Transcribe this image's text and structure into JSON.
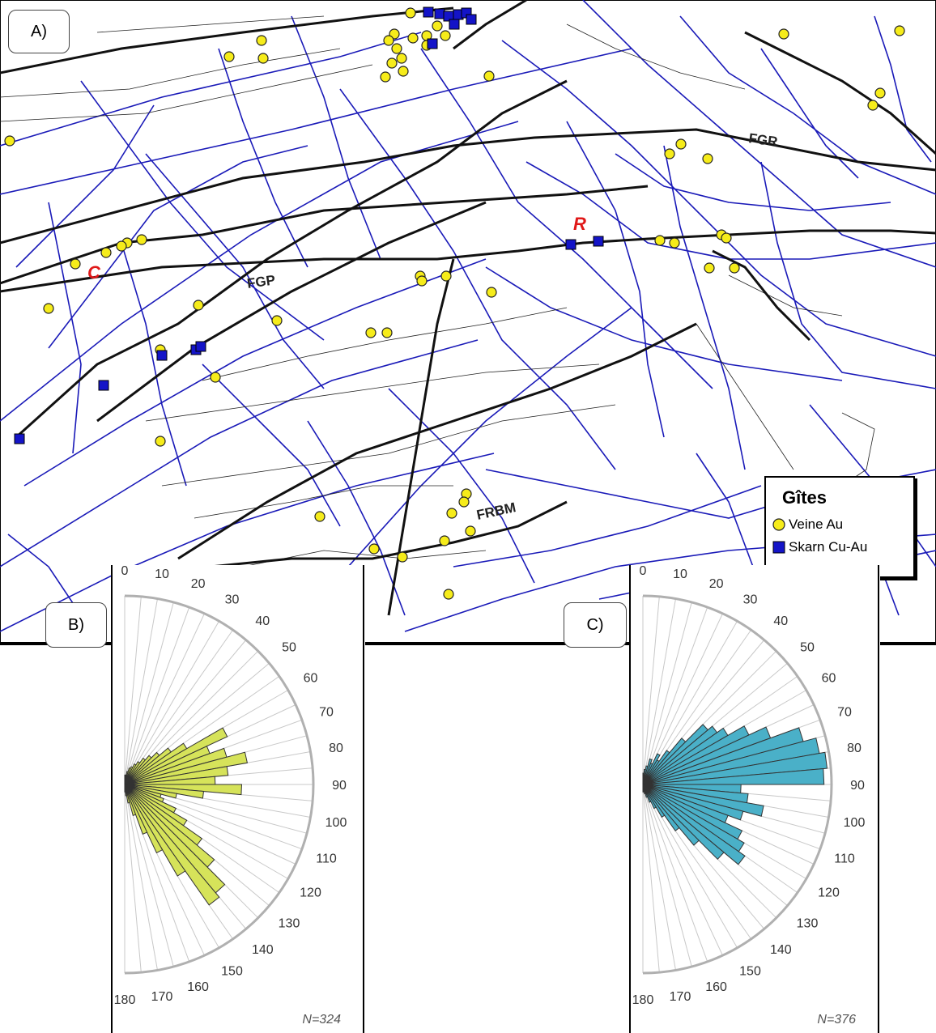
{
  "panels": {
    "a": "A)",
    "b": "B)",
    "c": "C)"
  },
  "map": {
    "fault_labels": [
      {
        "id": "fgr",
        "text": "FGR"
      },
      {
        "id": "fgp",
        "text": "FGP"
      },
      {
        "id": "frbm",
        "text": "FRBM"
      },
      {
        "id": "r",
        "text": "R"
      },
      {
        "id": "c",
        "text": "C"
      }
    ],
    "colors": {
      "lineament": "#1a1ab8",
      "fault": "#111111",
      "gold_vein": "#f6ec1a",
      "skarn": "#1414c8",
      "label_red": "#e01818"
    },
    "legend": {
      "title": "Gîtes",
      "items": [
        {
          "label": "Veine Au",
          "symbol": "yellow-circle"
        },
        {
          "label": "Skarn Cu-Au",
          "symbol": "blue-square"
        }
      ]
    }
  },
  "chart_data": [
    {
      "type": "rose",
      "panel": "B)",
      "title": "",
      "angle_ticks": [
        "0",
        "10",
        "20",
        "30",
        "40",
        "50",
        "60",
        "70",
        "80",
        "90",
        "100",
        "110",
        "120",
        "130",
        "140",
        "150",
        "160",
        "170",
        "180"
      ],
      "bin_width_deg": 5,
      "bins_start_deg": [
        0,
        5,
        10,
        15,
        20,
        25,
        30,
        35,
        40,
        45,
        50,
        55,
        60,
        65,
        70,
        75,
        80,
        85,
        90,
        95,
        100,
        105,
        110,
        115,
        120,
        125,
        130,
        135,
        140,
        145,
        150,
        155,
        160,
        165,
        170,
        175
      ],
      "values": [
        0.05,
        0.05,
        0.07,
        0.09,
        0.1,
        0.12,
        0.14,
        0.17,
        0.2,
        0.24,
        0.3,
        0.38,
        0.6,
        0.48,
        0.56,
        0.66,
        0.55,
        0.48,
        0.62,
        0.42,
        0.28,
        0.2,
        0.22,
        0.3,
        0.38,
        0.5,
        0.62,
        0.75,
        0.78,
        0.56,
        0.4,
        0.28,
        0.17,
        0.1,
        0.06,
        0.04
      ],
      "value_scale": "relative (outer circle = 1)",
      "color": "#d6e35a",
      "annotation": "N=324"
    },
    {
      "type": "rose",
      "panel": "C)",
      "title": "",
      "angle_ticks": [
        "0",
        "10",
        "20",
        "30",
        "40",
        "50",
        "60",
        "70",
        "80",
        "90",
        "100",
        "110",
        "120",
        "130",
        "140",
        "150",
        "160",
        "170",
        "180"
      ],
      "bin_width_deg": 5,
      "bins_start_deg": [
        0,
        5,
        10,
        15,
        20,
        25,
        30,
        35,
        40,
        45,
        50,
        55,
        60,
        65,
        70,
        75,
        80,
        85,
        90,
        95,
        100,
        105,
        110,
        115,
        120,
        125,
        130,
        135,
        140,
        145,
        150,
        155,
        160,
        165,
        170,
        175
      ],
      "values": [
        0.06,
        0.08,
        0.1,
        0.14,
        0.12,
        0.18,
        0.15,
        0.22,
        0.32,
        0.45,
        0.48,
        0.52,
        0.62,
        0.72,
        0.88,
        0.95,
        0.98,
        0.96,
        0.52,
        0.56,
        0.65,
        0.55,
        0.48,
        0.58,
        0.62,
        0.66,
        0.56,
        0.42,
        0.3,
        0.2,
        0.14,
        0.1,
        0.07,
        0.05,
        0.04,
        0.04
      ],
      "value_scale": "relative (outer circle = 1)",
      "color": "#4ab0c8",
      "annotation": "N=376"
    }
  ]
}
